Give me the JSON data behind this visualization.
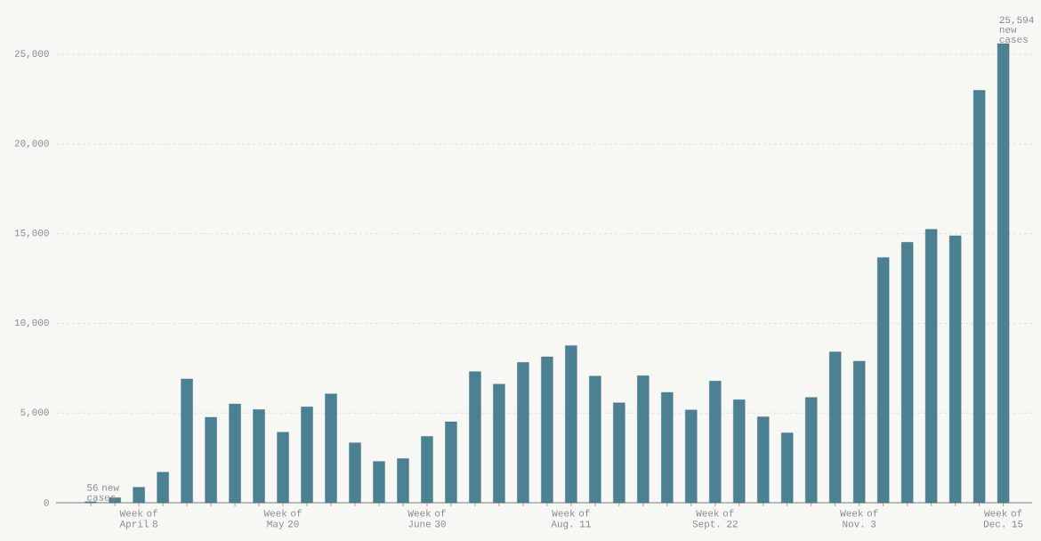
{
  "chart_data": {
    "type": "bar",
    "categories": [
      null,
      null,
      "Week of April 8",
      null,
      null,
      null,
      null,
      null,
      "Week of May 20",
      null,
      null,
      null,
      null,
      null,
      "Week of June 30",
      null,
      null,
      null,
      null,
      null,
      "Week of Aug. 11",
      null,
      null,
      null,
      null,
      null,
      "Week of Sept. 22",
      null,
      null,
      null,
      null,
      null,
      "Week of Nov. 3",
      null,
      null,
      null,
      null,
      null,
      "Week of Dec. 15"
    ],
    "values": [
      56,
      280,
      860,
      1700,
      6900,
      4760,
      5500,
      5190,
      3930,
      5340,
      6070,
      3340,
      2300,
      2460,
      3690,
      4510,
      7310,
      6610,
      7820,
      8130,
      8760,
      7060,
      5570,
      7080,
      6150,
      5170,
      6780,
      5740,
      4790,
      3890,
      5870,
      8410,
      7890,
      13670,
      14520,
      15240,
      14880,
      22990,
      25594
    ],
    "value_labels": [
      "56 new cases",
      null,
      null,
      null,
      null,
      null,
      null,
      null,
      null,
      null,
      null,
      null,
      null,
      null,
      null,
      null,
      null,
      null,
      null,
      null,
      null,
      null,
      null,
      null,
      null,
      null,
      null,
      null,
      null,
      null,
      null,
      null,
      null,
      null,
      null,
      null,
      null,
      null,
      "25,594 new cases"
    ],
    "color": "#4b8192",
    "ylim": [
      0,
      25600
    ],
    "yticks": [
      0,
      {
        "value": 5000,
        "label": "5,000"
      },
      {
        "value": 10000,
        "label": "10,000"
      },
      {
        "value": 15000,
        "label": "15,000"
      },
      {
        "value": 20000,
        "label": "20,000"
      },
      {
        "value": 25000,
        "label": "25,000"
      }
    ],
    "grid": "y"
  }
}
